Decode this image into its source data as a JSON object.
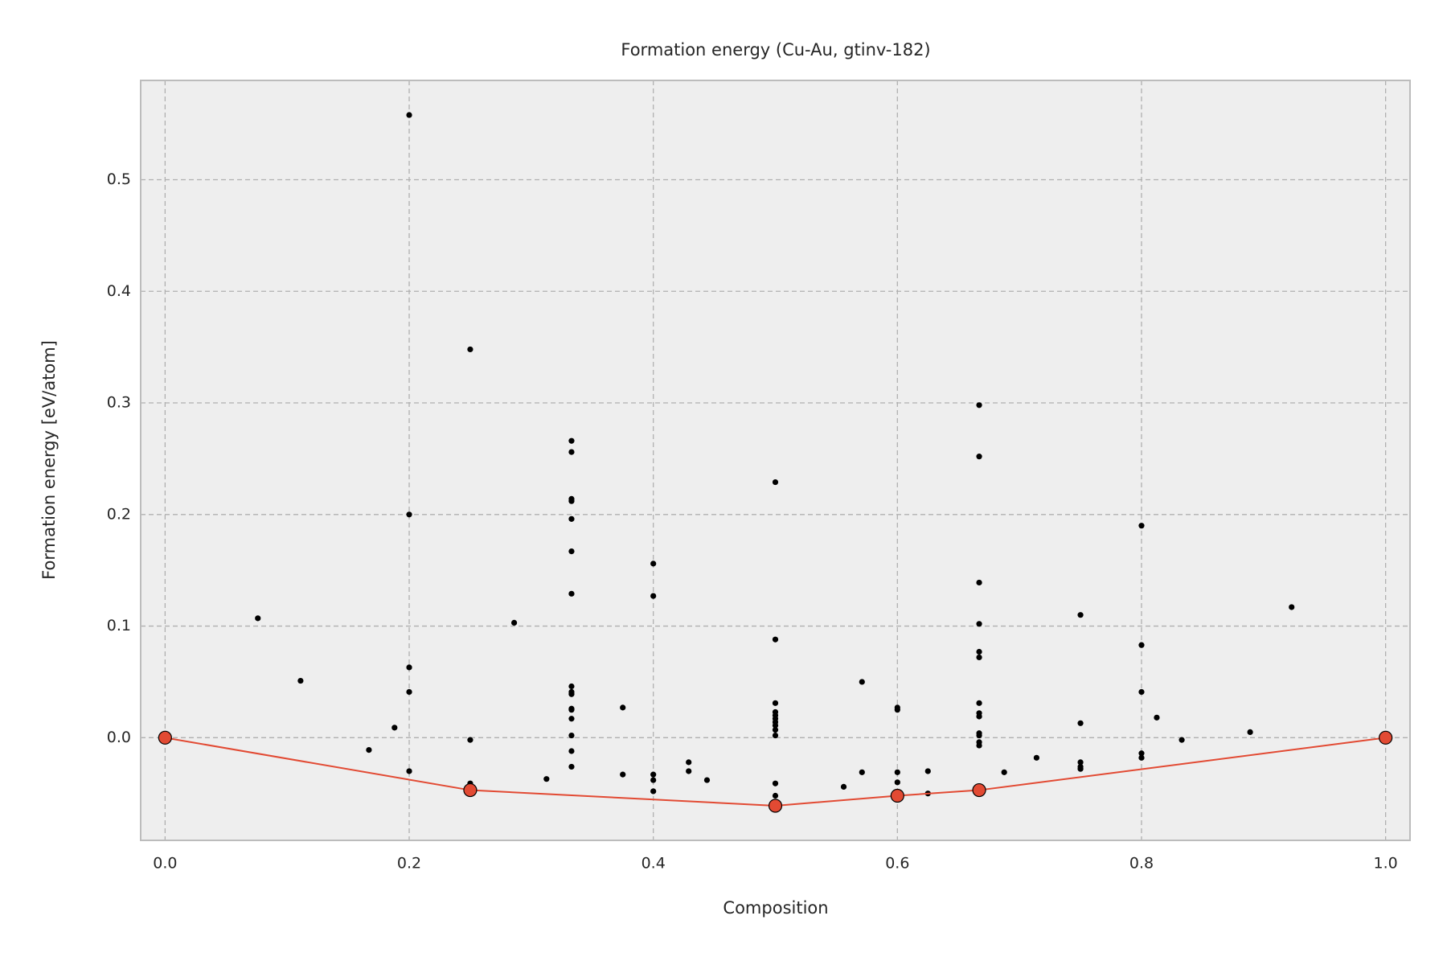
{
  "chart_data": {
    "type": "scatter",
    "title": "Formation energy (Cu-Au, gtinv-182)",
    "x_label": "Composition",
    "y_label": "Formation energy [eV/atom]",
    "xlim": [
      -0.02,
      1.02
    ],
    "ylim": [
      -0.092,
      0.589
    ],
    "xticks": [
      {
        "value": 0,
        "label": "0.0"
      },
      0.2,
      0.4,
      0.6,
      0.8,
      {
        "value": 1,
        "label": "1.0"
      }
    ],
    "yticks": [
      {
        "value": 0,
        "label": "0.0"
      },
      0.1,
      0.2,
      0.3,
      0.4,
      0.5
    ],
    "grid": true,
    "series": [
      {
        "color": "#000000",
        "x": [
          0.076,
          0.111,
          0.167,
          0.188,
          0.2,
          0.2,
          0.2,
          0.2,
          0.2,
          0.25,
          0.25,
          0.25,
          0.25,
          0.286,
          0.3125,
          0.333,
          0.333,
          0.333,
          0.333,
          0.333,
          0.333,
          0.333,
          0.333,
          0.333,
          0.333,
          0.333,
          0.333,
          0.333,
          0.333,
          0.333,
          0.333,
          0.375,
          0.375,
          0.4,
          0.4,
          0.4,
          0.4,
          0.4,
          0.429,
          0.429,
          0.444,
          0.5,
          0.5,
          0.5,
          0.5,
          0.5,
          0.5,
          0.5,
          0.5,
          0.5,
          0.5,
          0.5,
          0.5,
          0.556,
          0.571,
          0.571,
          0.6,
          0.6,
          0.6,
          0.6,
          0.625,
          0.625,
          0.667,
          0.667,
          0.667,
          0.667,
          0.667,
          0.667,
          0.667,
          0.667,
          0.667,
          0.667,
          0.667,
          0.667,
          0.667,
          0.6875,
          0.714,
          0.75,
          0.75,
          0.75,
          0.75,
          0.75,
          0.8,
          0.8,
          0.8,
          0.8,
          0.8,
          0.8125,
          0.833,
          0.889,
          0.923
        ],
        "values": [
          0.107,
          0.051,
          -0.011,
          0.009,
          0.558,
          0.2,
          0.063,
          0.041,
          -0.03,
          0.348,
          -0.002,
          -0.041,
          -0.044,
          0.103,
          -0.037,
          0.266,
          0.256,
          0.214,
          0.212,
          0.196,
          0.167,
          0.129,
          0.046,
          0.041,
          0.039,
          0.026,
          0.025,
          0.017,
          0.002,
          -0.012,
          -0.026,
          0.027,
          -0.033,
          0.156,
          0.127,
          -0.033,
          -0.038,
          -0.048,
          -0.022,
          -0.03,
          -0.038,
          0.229,
          0.088,
          0.031,
          0.023,
          0.02,
          0.017,
          0.014,
          0.011,
          0.007,
          0.002,
          -0.041,
          -0.052,
          -0.044,
          0.05,
          -0.031,
          0.027,
          0.025,
          -0.031,
          -0.04,
          -0.03,
          -0.05,
          0.298,
          0.252,
          0.139,
          0.102,
          0.077,
          0.072,
          0.031,
          0.022,
          0.019,
          0.004,
          0.002,
          -0.004,
          -0.007,
          -0.031,
          -0.018,
          0.11,
          0.013,
          -0.022,
          -0.026,
          -0.028,
          0.19,
          0.083,
          0.041,
          -0.014,
          -0.018,
          0.018,
          -0.002,
          0.005,
          0.117
        ]
      },
      {
        "color": "#e24a33",
        "type": "line",
        "x": [
          0,
          0.25,
          0.5,
          0.6,
          0.667,
          1
        ],
        "values": [
          0,
          -0.047,
          -0.061,
          -0.052,
          -0.047,
          0
        ]
      }
    ]
  }
}
